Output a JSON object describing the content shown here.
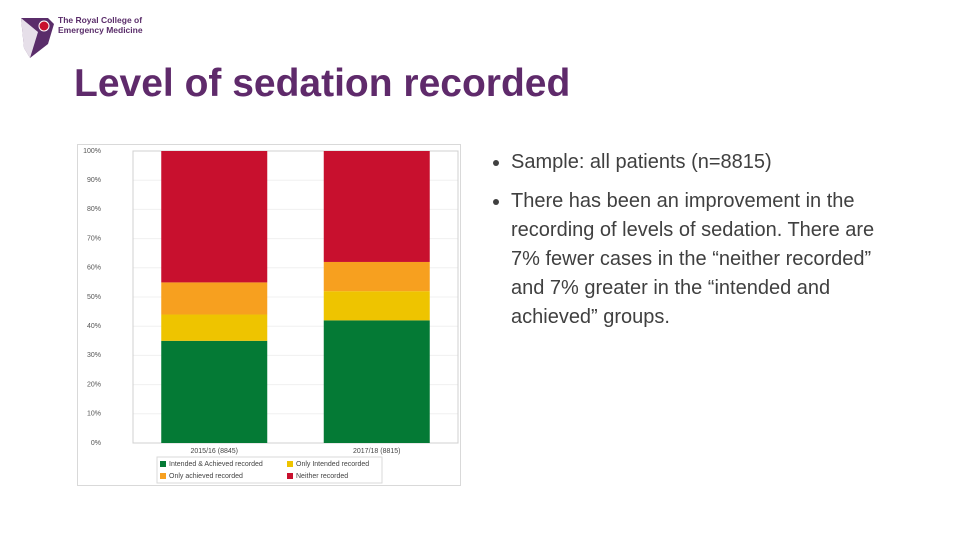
{
  "header": {
    "logo_lines": [
      "The Royal College of",
      "Emergency Medicine"
    ]
  },
  "title": "Level of sedation recorded",
  "chart_data": {
    "type": "stacked-bar",
    "categories": [
      "2015/16 (8845)",
      "2017/18 (8815)"
    ],
    "series": [
      {
        "name": "Intended & Achieved recorded",
        "color": "#047a35",
        "values": [
          35,
          42
        ]
      },
      {
        "name": "Only Intended recorded",
        "color": "#eec400",
        "values": [
          9,
          10
        ]
      },
      {
        "name": "Only achieved recorded",
        "color": "#f7a01f",
        "values": [
          11,
          10
        ]
      },
      {
        "name": "Neither recorded",
        "color": "#c8102e",
        "values": [
          45,
          38
        ]
      }
    ],
    "ylim": [
      0,
      100
    ],
    "yticks": [
      {
        "value": 0,
        "label": "0%"
      },
      {
        "value": 10,
        "label": "10%"
      },
      {
        "value": 20,
        "label": "20%"
      },
      {
        "value": 30,
        "label": "30%"
      },
      {
        "value": 40,
        "label": "40%"
      },
      {
        "value": 50,
        "label": "50%"
      },
      {
        "value": 60,
        "label": "60%"
      },
      {
        "value": 70,
        "label": "70%"
      },
      {
        "value": 80,
        "label": "80%"
      },
      {
        "value": 90,
        "label": "90%"
      },
      {
        "value": 100,
        "label": "100%"
      }
    ],
    "grid": true
  },
  "bullets": [
    "Sample: all patients (n=8815)",
    "There has been an improvement in the recording of levels of sedation. There are 7% fewer cases in the “neither recorded” and 7% greater in the “intended and achieved” groups."
  ]
}
